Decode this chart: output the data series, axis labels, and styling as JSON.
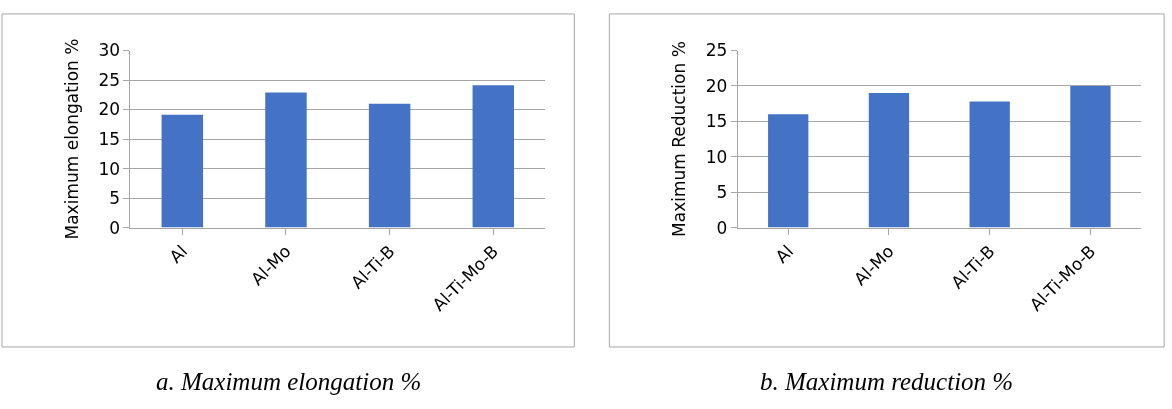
{
  "chart_data": [
    {
      "type": "bar",
      "title": "a. Maximum elongation %",
      "ylabel": "Maximum elongation %",
      "categories": [
        "Al",
        "Al-Mo",
        "Al-Ti-B",
        "Al-Ti-Mo-B"
      ],
      "values": [
        19.1,
        22.9,
        21.0,
        24.1
      ],
      "color": "#4472c4",
      "ylim": [
        0,
        30
      ],
      "yticks": [
        0,
        5,
        10,
        15,
        20,
        25,
        30
      ],
      "grid": "y"
    },
    {
      "type": "bar",
      "title": "b. Maximum reduction %",
      "ylabel": "Maximum Reduction %",
      "categories": [
        "Al",
        "Al-Mo",
        "Al-Ti-B",
        "Al-Ti-Mo-B"
      ],
      "values": [
        16.0,
        19.0,
        17.8,
        20.0
      ],
      "color": "#4472c4",
      "ylim": [
        0,
        25
      ],
      "yticks": [
        0,
        5,
        10,
        15,
        20,
        25
      ],
      "grid": "y"
    }
  ]
}
